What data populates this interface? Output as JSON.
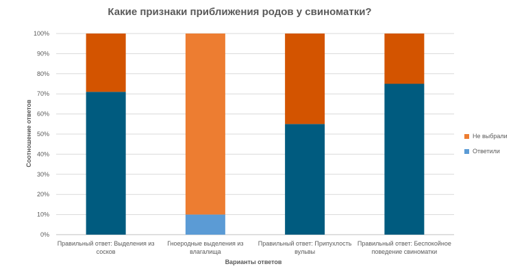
{
  "chart_data": {
    "type": "bar",
    "stacked": true,
    "title": "Какие признаки приближения родов у свиноматки?",
    "xlabel": "Варианты ответов",
    "ylabel": "Соотношение ответов",
    "ylim": [
      0,
      100
    ],
    "yticks": [
      "0%",
      "10%",
      "20%",
      "30%",
      "40%",
      "50%",
      "60%",
      "70%",
      "80%",
      "90%",
      "100%"
    ],
    "grid": true,
    "legend_position": "right",
    "categories": [
      "Правильный ответ: Выделения из сосков",
      "Гноеродные выделения из влагалища",
      "Правильный ответ: Припухлость вульвы",
      "Правильный ответ: Беспокойное поведение свиноматки"
    ],
    "category_lines": [
      [
        "Правильный ответ: Выделения из",
        "сосков"
      ],
      [
        "Гноеродные выделения из",
        "влагалища"
      ],
      [
        "Правильный ответ: Припухлость",
        "вульвы"
      ],
      [
        "Правильный ответ: Беспокойное",
        "поведение свиноматки"
      ]
    ],
    "series": [
      {
        "name": "Ответили",
        "values": [
          71,
          10,
          55,
          75
        ],
        "bar_colors": [
          "#005b7f",
          "#5b9bd5",
          "#005b7f",
          "#005b7f"
        ]
      },
      {
        "name": "Не выбрали",
        "values": [
          29,
          90,
          45,
          25
        ],
        "bar_colors": [
          "#d35400",
          "#ed7d31",
          "#d35400",
          "#d35400"
        ]
      }
    ],
    "legend": [
      {
        "name": "Не выбрали",
        "color": "#ed7d31"
      },
      {
        "name": "Ответили",
        "color": "#5b9bd5"
      }
    ],
    "colors": {
      "grid": "#d9d9d9",
      "axis": "#bfbfbf",
      "text": "#595959"
    }
  }
}
